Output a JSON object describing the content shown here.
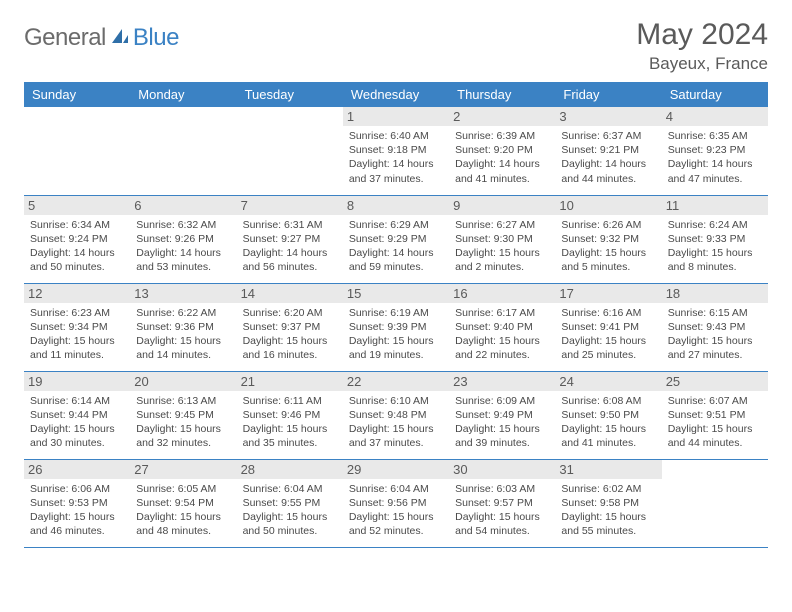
{
  "brand": {
    "part1": "General",
    "part2": "Blue"
  },
  "title": "May 2024",
  "location": "Bayeux, France",
  "colors": {
    "header_bg": "#3b82c4",
    "row_border": "#3b82c4",
    "daynum_bg": "#e9e9e9"
  },
  "day_headers": [
    "Sunday",
    "Monday",
    "Tuesday",
    "Wednesday",
    "Thursday",
    "Friday",
    "Saturday"
  ],
  "weeks": [
    [
      null,
      null,
      null,
      {
        "n": "1",
        "sunrise": "6:40 AM",
        "sunset": "9:18 PM",
        "daylight": "14 hours and 37 minutes."
      },
      {
        "n": "2",
        "sunrise": "6:39 AM",
        "sunset": "9:20 PM",
        "daylight": "14 hours and 41 minutes."
      },
      {
        "n": "3",
        "sunrise": "6:37 AM",
        "sunset": "9:21 PM",
        "daylight": "14 hours and 44 minutes."
      },
      {
        "n": "4",
        "sunrise": "6:35 AM",
        "sunset": "9:23 PM",
        "daylight": "14 hours and 47 minutes."
      }
    ],
    [
      {
        "n": "5",
        "sunrise": "6:34 AM",
        "sunset": "9:24 PM",
        "daylight": "14 hours and 50 minutes."
      },
      {
        "n": "6",
        "sunrise": "6:32 AM",
        "sunset": "9:26 PM",
        "daylight": "14 hours and 53 minutes."
      },
      {
        "n": "7",
        "sunrise": "6:31 AM",
        "sunset": "9:27 PM",
        "daylight": "14 hours and 56 minutes."
      },
      {
        "n": "8",
        "sunrise": "6:29 AM",
        "sunset": "9:29 PM",
        "daylight": "14 hours and 59 minutes."
      },
      {
        "n": "9",
        "sunrise": "6:27 AM",
        "sunset": "9:30 PM",
        "daylight": "15 hours and 2 minutes."
      },
      {
        "n": "10",
        "sunrise": "6:26 AM",
        "sunset": "9:32 PM",
        "daylight": "15 hours and 5 minutes."
      },
      {
        "n": "11",
        "sunrise": "6:24 AM",
        "sunset": "9:33 PM",
        "daylight": "15 hours and 8 minutes."
      }
    ],
    [
      {
        "n": "12",
        "sunrise": "6:23 AM",
        "sunset": "9:34 PM",
        "daylight": "15 hours and 11 minutes."
      },
      {
        "n": "13",
        "sunrise": "6:22 AM",
        "sunset": "9:36 PM",
        "daylight": "15 hours and 14 minutes."
      },
      {
        "n": "14",
        "sunrise": "6:20 AM",
        "sunset": "9:37 PM",
        "daylight": "15 hours and 16 minutes."
      },
      {
        "n": "15",
        "sunrise": "6:19 AM",
        "sunset": "9:39 PM",
        "daylight": "15 hours and 19 minutes."
      },
      {
        "n": "16",
        "sunrise": "6:17 AM",
        "sunset": "9:40 PM",
        "daylight": "15 hours and 22 minutes."
      },
      {
        "n": "17",
        "sunrise": "6:16 AM",
        "sunset": "9:41 PM",
        "daylight": "15 hours and 25 minutes."
      },
      {
        "n": "18",
        "sunrise": "6:15 AM",
        "sunset": "9:43 PM",
        "daylight": "15 hours and 27 minutes."
      }
    ],
    [
      {
        "n": "19",
        "sunrise": "6:14 AM",
        "sunset": "9:44 PM",
        "daylight": "15 hours and 30 minutes."
      },
      {
        "n": "20",
        "sunrise": "6:13 AM",
        "sunset": "9:45 PM",
        "daylight": "15 hours and 32 minutes."
      },
      {
        "n": "21",
        "sunrise": "6:11 AM",
        "sunset": "9:46 PM",
        "daylight": "15 hours and 35 minutes."
      },
      {
        "n": "22",
        "sunrise": "6:10 AM",
        "sunset": "9:48 PM",
        "daylight": "15 hours and 37 minutes."
      },
      {
        "n": "23",
        "sunrise": "6:09 AM",
        "sunset": "9:49 PM",
        "daylight": "15 hours and 39 minutes."
      },
      {
        "n": "24",
        "sunrise": "6:08 AM",
        "sunset": "9:50 PM",
        "daylight": "15 hours and 41 minutes."
      },
      {
        "n": "25",
        "sunrise": "6:07 AM",
        "sunset": "9:51 PM",
        "daylight": "15 hours and 44 minutes."
      }
    ],
    [
      {
        "n": "26",
        "sunrise": "6:06 AM",
        "sunset": "9:53 PM",
        "daylight": "15 hours and 46 minutes."
      },
      {
        "n": "27",
        "sunrise": "6:05 AM",
        "sunset": "9:54 PM",
        "daylight": "15 hours and 48 minutes."
      },
      {
        "n": "28",
        "sunrise": "6:04 AM",
        "sunset": "9:55 PM",
        "daylight": "15 hours and 50 minutes."
      },
      {
        "n": "29",
        "sunrise": "6:04 AM",
        "sunset": "9:56 PM",
        "daylight": "15 hours and 52 minutes."
      },
      {
        "n": "30",
        "sunrise": "6:03 AM",
        "sunset": "9:57 PM",
        "daylight": "15 hours and 54 minutes."
      },
      {
        "n": "31",
        "sunrise": "6:02 AM",
        "sunset": "9:58 PM",
        "daylight": "15 hours and 55 minutes."
      },
      null
    ]
  ],
  "labels": {
    "sunrise": "Sunrise:",
    "sunset": "Sunset:",
    "daylight": "Daylight:"
  }
}
